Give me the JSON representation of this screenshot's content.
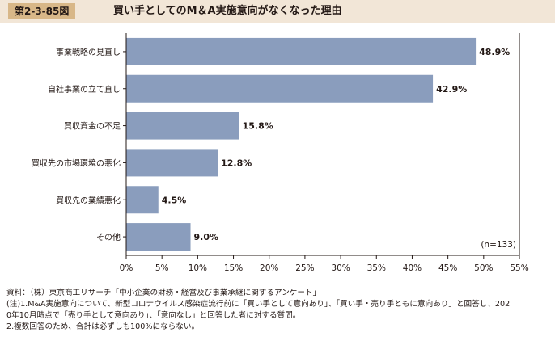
{
  "header": {
    "figure_number": "第2-3-85図",
    "title": "買い手としてのM＆A実施意向がなくなった理由"
  },
  "chart_data": {
    "type": "bar",
    "orientation": "horizontal",
    "title": "買い手としてのM＆A実施意向がなくなった理由",
    "categories": [
      "事業戦略の見直し",
      "自社事業の立て直し",
      "買収資金の不足",
      "買収先の市場環境の悪化",
      "買収先の業績悪化",
      "その他"
    ],
    "values": [
      48.9,
      42.9,
      15.8,
      12.8,
      4.5,
      9.0
    ],
    "value_labels": [
      "48.9%",
      "42.9%",
      "15.8%",
      "12.8%",
      "4.5%",
      "9.0%"
    ],
    "xlim": [
      0,
      55
    ],
    "ticks": [
      0,
      5,
      10,
      15,
      20,
      25,
      30,
      35,
      40,
      45,
      50,
      55
    ],
    "tick_labels": [
      "0%",
      "5%",
      "10%",
      "15%",
      "20%",
      "25%",
      "30%",
      "35%",
      "40%",
      "45%",
      "50%",
      "55%"
    ],
    "sample_size": "(n=133)",
    "bar_color": "#8a9dbd",
    "grid": false
  },
  "notes": {
    "source": "資料：（株）東京商工リサーチ「中小企業の財務・経営及び事業承継に関するアンケート」",
    "note1_line1": "(注)1.M&A実施意向について、新型コロナウイルス感染症流行前に「買い手として意向あり」、「買い手・売り手ともに意向あり」と回答し、202",
    "note1_line2": "0年10月時点で「売り手として意向あり」、「意向なし」と回答した者に対する質問。",
    "note2": "2.複数回答のため、合計は必ずしも100%にならない。"
  }
}
